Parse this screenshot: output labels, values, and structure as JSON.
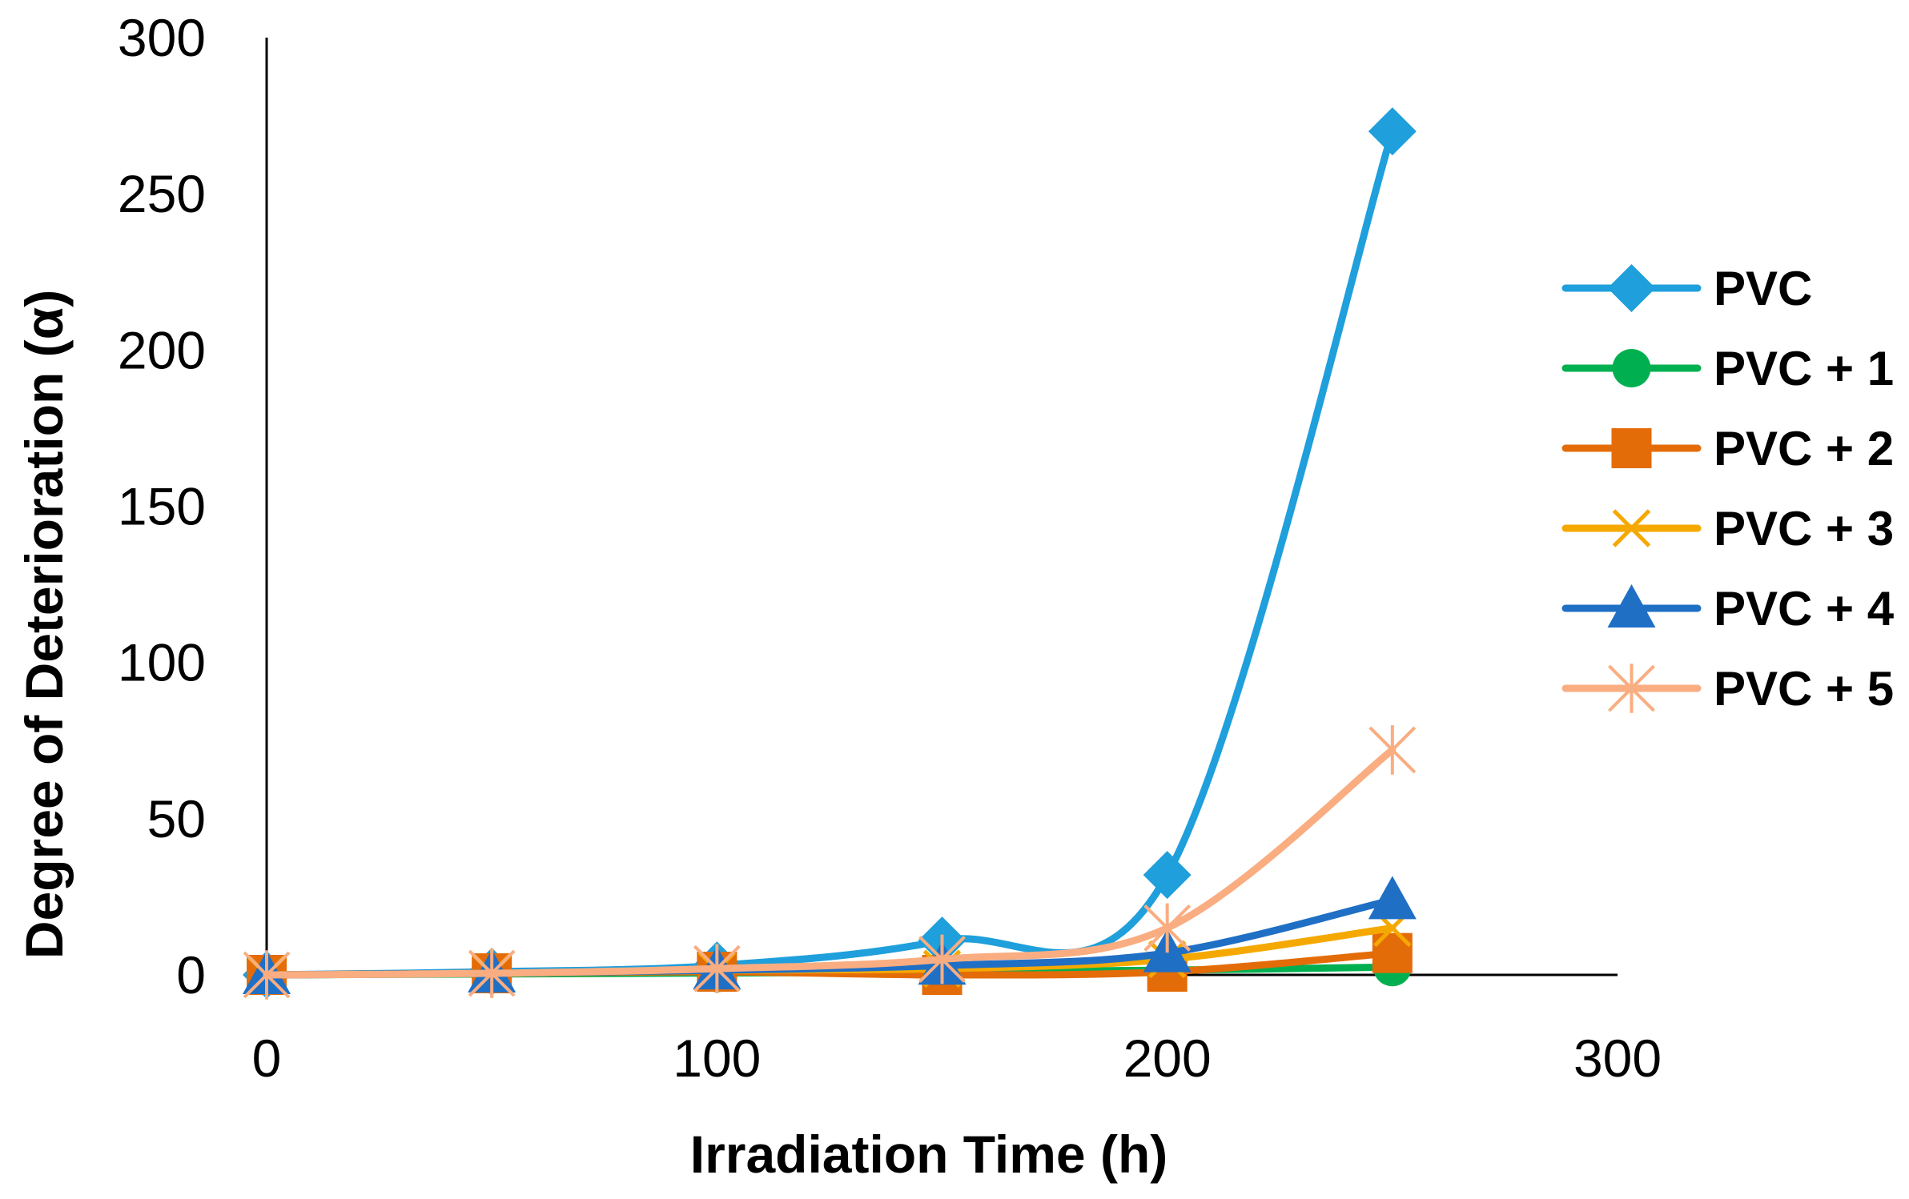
{
  "chart_data": {
    "type": "line",
    "title": "",
    "xlabel": "Irradiation Time (h)",
    "ylabel": "Degree of Deterioration (α)",
    "xlim": [
      0,
      300
    ],
    "ylim": [
      0,
      300
    ],
    "x_ticks": [
      "0",
      "100",
      "200",
      "300"
    ],
    "y_ticks": [
      "0",
      "50",
      "100",
      "150",
      "200",
      "250",
      "300"
    ],
    "x_tick_values": [
      0,
      100,
      200,
      300
    ],
    "y_tick_values": [
      0,
      50,
      100,
      150,
      200,
      250,
      300
    ],
    "grid": false,
    "smooth": true,
    "legend_position": "right",
    "x": [
      0,
      50,
      100,
      150,
      200,
      250
    ],
    "series": [
      {
        "name": "PVC",
        "color": "#1f9fdb",
        "marker": "diamond",
        "values": [
          0,
          1,
          3,
          11,
          32,
          270
        ]
      },
      {
        "name": "PVC + 1",
        "color": "#00b050",
        "marker": "circle",
        "values": [
          0,
          0.3,
          0.6,
          0.9,
          1.5,
          2.5
        ]
      },
      {
        "name": "PVC + 2",
        "color": "#e36c09",
        "marker": "square",
        "values": [
          0,
          0.5,
          1,
          0,
          1,
          7
        ]
      },
      {
        "name": "PVC + 3",
        "color": "#f5a800",
        "marker": "x",
        "values": [
          0,
          0.5,
          1.5,
          2,
          5,
          15
        ]
      },
      {
        "name": "PVC + 4",
        "color": "#1f6fc5",
        "marker": "triangle",
        "values": [
          0,
          0.5,
          1.5,
          3,
          7,
          24
        ]
      },
      {
        "name": "PVC + 5",
        "color": "#f9ad81",
        "marker": "star",
        "values": [
          0,
          0.5,
          2,
          5,
          15,
          72
        ]
      }
    ]
  }
}
